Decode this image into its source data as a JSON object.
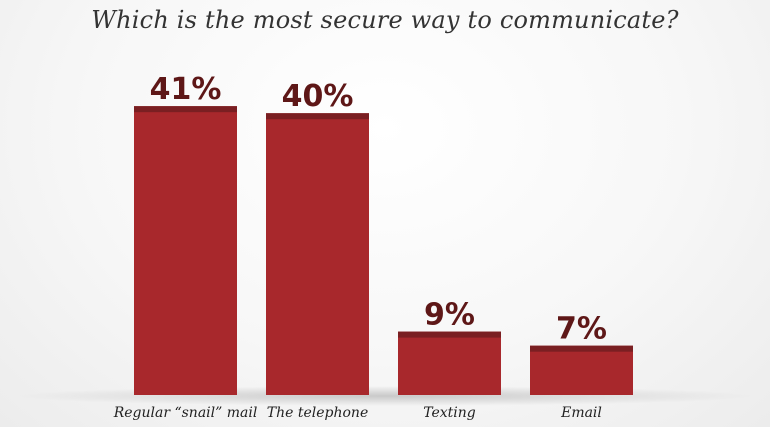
{
  "chart_data": {
    "type": "bar",
    "title": "Which is the most secure way to communicate?",
    "xlabel": "",
    "ylabel": "",
    "categories": [
      "Regular “snail” mail",
      "The telephone",
      "Texting",
      "Email"
    ],
    "values": [
      41,
      40,
      9,
      7
    ],
    "value_labels": [
      "41%",
      "40%",
      "9%",
      "7%"
    ],
    "ylim": [
      0,
      45
    ],
    "grid": false,
    "legend": "none"
  },
  "colors": {
    "bar": "#a8282c",
    "bar_cap": "#7a1f22",
    "value_label": "#5e1717",
    "category_label": "#222222",
    "title": "#333333"
  }
}
